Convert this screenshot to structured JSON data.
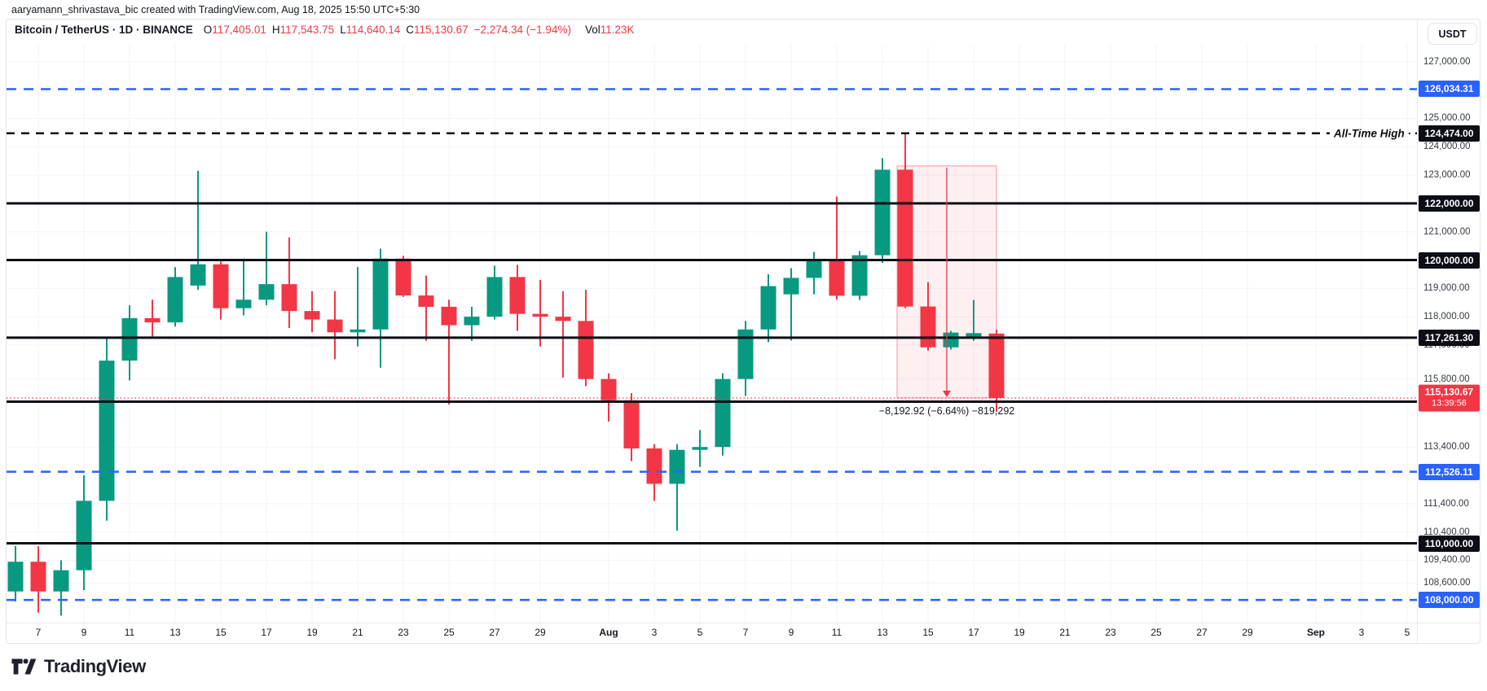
{
  "header": {
    "attribution": "aaryamann_shrivastava_bic created with TradingView.com, Aug 18, 2025 15:50 UTC+5:30"
  },
  "legend": {
    "symbol_line": "Bitcoin / TetherUS · 1D · BINANCE",
    "o_label": "O",
    "o": "117,405.01",
    "h_label": "H",
    "h": "117,543.75",
    "l_label": "L",
    "l": "114,640.14",
    "c_label": "C",
    "c": "115,130.67",
    "change": "−2,274.34 (−1.94%)",
    "vol_label": "Vol",
    "vol": "11.23K"
  },
  "toolbar": {
    "currency_button": "USDT"
  },
  "logo": {
    "text": "TradingView"
  },
  "colors": {
    "green": "#089981",
    "red": "#F23645",
    "blue": "#2962FF",
    "black": "#0c0e15",
    "grid": "#f0f3fa",
    "box_fill": "rgba(242,54,69,0.08)",
    "box_stroke": "rgba(242,54,69,0.5)"
  },
  "chart_data": {
    "type": "candlestick",
    "title": "Bitcoin / TetherUS 1D BINANCE",
    "x_dates": [
      "Jul 6",
      "Jul 7",
      "Jul 8",
      "Jul 9",
      "Jul 10",
      "Jul 11",
      "Jul 12",
      "Jul 13",
      "Jul 14",
      "Jul 15",
      "Jul 16",
      "Jul 17",
      "Jul 18",
      "Jul 19",
      "Jul 20",
      "Jul 21",
      "Jul 22",
      "Jul 23",
      "Jul 24",
      "Jul 25",
      "Jul 26",
      "Jul 27",
      "Jul 28",
      "Jul 29",
      "Jul 30",
      "Jul 31",
      "Aug 1",
      "Aug 2",
      "Aug 3",
      "Aug 4",
      "Aug 5",
      "Aug 6",
      "Aug 7",
      "Aug 8",
      "Aug 9",
      "Aug 10",
      "Aug 11",
      "Aug 12",
      "Aug 13",
      "Aug 14",
      "Aug 15",
      "Aug 16",
      "Aug 17",
      "Aug 18"
    ],
    "ohlc": [
      [
        108300,
        109900,
        107950,
        109350
      ],
      [
        109350,
        109900,
        107550,
        108300
      ],
      [
        108300,
        109400,
        107450,
        109050
      ],
      [
        109050,
        112400,
        108350,
        111500
      ],
      [
        111500,
        117300,
        110800,
        116450
      ],
      [
        116450,
        118400,
        115750,
        117950
      ],
      [
        117950,
        118600,
        117300,
        117800
      ],
      [
        117800,
        119750,
        117650,
        119400
      ],
      [
        119100,
        123150,
        118950,
        119850
      ],
      [
        119850,
        119950,
        117900,
        118300
      ],
      [
        118300,
        120050,
        118050,
        118600
      ],
      [
        118600,
        121000,
        118400,
        119150
      ],
      [
        119150,
        120800,
        117600,
        118200
      ],
      [
        118200,
        118900,
        117450,
        117900
      ],
      [
        117900,
        118900,
        116500,
        117450
      ],
      [
        117450,
        119750,
        116950,
        117550
      ],
      [
        117550,
        120400,
        116200,
        120050
      ],
      [
        120050,
        120150,
        118700,
        118750
      ],
      [
        118750,
        119450,
        117150,
        118350
      ],
      [
        118350,
        118600,
        114900,
        117700
      ],
      [
        117700,
        118350,
        117150,
        118000
      ],
      [
        118000,
        119800,
        117900,
        119400
      ],
      [
        119400,
        119830,
        117500,
        118100
      ],
      [
        118100,
        119300,
        116950,
        118000
      ],
      [
        118000,
        118900,
        115850,
        117850
      ],
      [
        117850,
        118950,
        115550,
        115800
      ],
      [
        115800,
        116000,
        114300,
        115050
      ],
      [
        115050,
        115300,
        112900,
        113350
      ],
      [
        113350,
        113500,
        111500,
        112100
      ],
      [
        112100,
        113500,
        110450,
        113300
      ],
      [
        113300,
        114000,
        112700,
        113400
      ],
      [
        113400,
        116000,
        113100,
        115800
      ],
      [
        115800,
        117850,
        115200,
        117550
      ],
      [
        117550,
        119500,
        117100,
        119080
      ],
      [
        118790,
        119710,
        117160,
        119370
      ],
      [
        119370,
        120290,
        118790,
        120030
      ],
      [
        120030,
        122240,
        118600,
        118740
      ],
      [
        118740,
        120320,
        118590,
        120170
      ],
      [
        120170,
        123600,
        119900,
        123190
      ],
      [
        123190,
        124474,
        118300,
        118360
      ],
      [
        118360,
        119220,
        116800,
        116920
      ],
      [
        116920,
        117500,
        116840,
        117440
      ],
      [
        117300,
        118590,
        117150,
        117420
      ],
      [
        117405.01,
        117543.75,
        114640.14,
        115130.67
      ]
    ],
    "y_axis": {
      "visible_range": [
        107200,
        127600
      ],
      "gray_ticks": [
        {
          "price": 127000,
          "label": "127,000.00"
        },
        {
          "price": 125000,
          "label": "125,000.00"
        },
        {
          "price": 124000,
          "label": "124,000.00"
        },
        {
          "price": 123000,
          "label": "123,000.00"
        },
        {
          "price": 121000,
          "label": "121,000.00"
        },
        {
          "price": 119000,
          "label": "119,000.00"
        },
        {
          "price": 118000,
          "label": "118,000.00"
        },
        {
          "price": 117000,
          "label": "117,000.00"
        },
        {
          "price": 115800,
          "label": "115,800.00"
        },
        {
          "price": 113400,
          "label": "113,400.00"
        },
        {
          "price": 111400,
          "label": "111,400.00"
        },
        {
          "price": 110400,
          "label": "110,400.00"
        },
        {
          "price": 109400,
          "label": "109,400.00"
        },
        {
          "price": 108600,
          "label": "108,600.00"
        }
      ]
    },
    "x_axis_ticks": [
      {
        "label": "7",
        "index": 1
      },
      {
        "label": "9",
        "index": 3
      },
      {
        "label": "11",
        "index": 5
      },
      {
        "label": "13",
        "index": 7
      },
      {
        "label": "15",
        "index": 9
      },
      {
        "label": "17",
        "index": 11
      },
      {
        "label": "19",
        "index": 13
      },
      {
        "label": "21",
        "index": 15
      },
      {
        "label": "23",
        "index": 17
      },
      {
        "label": "25",
        "index": 19
      },
      {
        "label": "27",
        "index": 21
      },
      {
        "label": "29",
        "index": 23
      },
      {
        "label": "Aug",
        "index": 26,
        "month": true
      },
      {
        "label": "3",
        "index": 28
      },
      {
        "label": "5",
        "index": 30
      },
      {
        "label": "7",
        "index": 32
      },
      {
        "label": "9",
        "index": 34
      },
      {
        "label": "11",
        "index": 36
      },
      {
        "label": "13",
        "index": 38
      },
      {
        "label": "15",
        "index": 40
      },
      {
        "label": "17",
        "index": 42
      },
      {
        "label": "19",
        "index": 44
      },
      {
        "label": "21",
        "index": 46
      },
      {
        "label": "23",
        "index": 48
      },
      {
        "label": "25",
        "index": 50
      },
      {
        "label": "27",
        "index": 52
      },
      {
        "label": "29",
        "index": 54
      },
      {
        "label": "Sep",
        "index": 57,
        "month": true
      },
      {
        "label": "3",
        "index": 59
      },
      {
        "label": "5",
        "index": 61
      }
    ],
    "horizontal_levels": [
      {
        "price": 126034.31,
        "style": "dashed",
        "color": "blue",
        "label": "126,034.31"
      },
      {
        "price": 124474.0,
        "style": "dashed",
        "color": "black",
        "label": "124,474.00"
      },
      {
        "price": 122000.0,
        "style": "solid",
        "color": "black",
        "label": "122,000.00"
      },
      {
        "price": 120000.0,
        "style": "solid",
        "color": "black",
        "label": "120,000.00"
      },
      {
        "price": 117261.3,
        "style": "solid",
        "color": "black",
        "label": "117,261.30"
      },
      {
        "price": 115000.0,
        "style": "solid",
        "color": "black",
        "label": "115,000.00"
      },
      {
        "price": 112526.11,
        "style": "dashed",
        "color": "blue",
        "label": "112,526.11"
      },
      {
        "price": 110000.0,
        "style": "solid",
        "color": "black",
        "label": "110,000.00"
      },
      {
        "price": 108000.0,
        "style": "dashed",
        "color": "blue",
        "label": "108,000.00"
      }
    ],
    "current_price": {
      "price": 115130.67,
      "label": "115,130.67",
      "countdown": "13:39:56"
    },
    "projection": {
      "from_date": "Aug 14",
      "to_date": "Aug 18",
      "from_price": 123323.59,
      "to_price": 115130.67,
      "label": "−8,192.92 (−6.64%) −819,292"
    },
    "annotations": {
      "ath_text": "All-Time High ·"
    }
  }
}
